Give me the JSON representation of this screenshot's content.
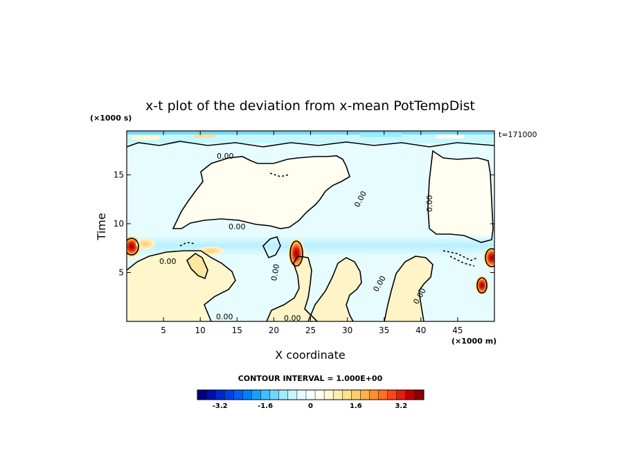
{
  "chart_data": {
    "type": "heatmap",
    "title": "x-t plot of the deviation from x-mean PotTempDist",
    "xlabel": "X coordinate",
    "ylabel": "Time",
    "x_unit": "(×1000 m)",
    "y_unit": "(×1000 s)",
    "xlim": [
      0,
      50
    ],
    "ylim": [
      0,
      19.5
    ],
    "x_ticks": [
      5,
      10,
      15,
      20,
      25,
      30,
      35,
      40,
      45
    ],
    "y_ticks": [
      5,
      10,
      15
    ],
    "time_note": "t=171000",
    "contour_interval_label": "CONTOUR INTERVAL = 1.000E+00",
    "contour_level_label": "0.00",
    "colorbar": {
      "min": -4.0,
      "max": 4.0,
      "step": 0.4,
      "tick_values": [
        -3.2,
        -1.6,
        0,
        1.6,
        3.2
      ],
      "tick_labels": [
        "-3.2",
        "-1.6",
        "0",
        "1.6",
        "3.2"
      ],
      "colors": [
        "#00007f",
        "#0010a8",
        "#0028c8",
        "#0040e0",
        "#0060f0",
        "#0080f8",
        "#18a0ff",
        "#40c0ff",
        "#70d8ff",
        "#a0ecff",
        "#c8f6ff",
        "#e6fcff",
        "#f8ffff",
        "#fffef0",
        "#fff8d0",
        "#ffeeb0",
        "#ffe090",
        "#ffcc70",
        "#ffb050",
        "#ff9030",
        "#ff7020",
        "#f84818",
        "#e02010",
        "#c00000",
        "#8c0000"
      ]
    },
    "regions": [
      {
        "name": "background-negative",
        "value": -0.3
      },
      {
        "name": "upper-left-positive-patch",
        "value": 0.2
      },
      {
        "name": "upper-right-positive-patch",
        "value": 0.2
      },
      {
        "name": "lower-left-positive-lobe",
        "value": 0.4
      },
      {
        "name": "central-tongue-positive",
        "value": 0.3
      },
      {
        "name": "right-finger-positive",
        "value": 0.3
      },
      {
        "name": "hotspot-x23-t8",
        "value": 3.5
      },
      {
        "name": "hotspot-left-edge-t8",
        "value": 3.0
      },
      {
        "name": "hotspot-right-edge-t7",
        "value": 3.5
      },
      {
        "name": "hotspot-right-edge-t4",
        "value": 2.5
      }
    ]
  }
}
